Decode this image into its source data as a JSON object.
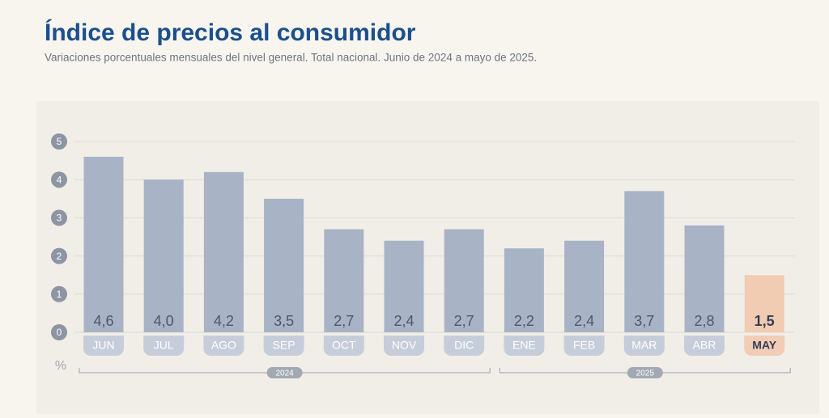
{
  "chart_data": {
    "type": "bar",
    "title": "Índice de precios al consumidor",
    "subtitle": "Variaciones porcentuales mensuales del nivel general. Total nacional. Junio de 2024 a mayo de 2025.",
    "categories": [
      "JUN",
      "JUL",
      "AGO",
      "SEP",
      "OCT",
      "NOV",
      "DIC",
      "ENE",
      "FEB",
      "MAR",
      "ABR",
      "MAY"
    ],
    "values": [
      4.6,
      4.0,
      4.2,
      3.5,
      2.7,
      2.4,
      2.7,
      2.2,
      2.4,
      3.7,
      2.8,
      1.5
    ],
    "value_labels": [
      "4,6",
      "4,0",
      "4,2",
      "3,5",
      "2,7",
      "2,4",
      "2,7",
      "2,2",
      "2,4",
      "3,7",
      "2,8",
      "1,5"
    ],
    "colors": [
      "#a8b3c6",
      "#a8b3c6",
      "#a8b3c6",
      "#a8b3c6",
      "#a8b3c6",
      "#a8b3c6",
      "#a8b3c6",
      "#a8b3c6",
      "#a8b3c6",
      "#a8b3c6",
      "#a8b3c6",
      "#f2cbb3"
    ],
    "y_unit": "%",
    "ylim": [
      0,
      5
    ],
    "yticks": [
      0,
      1,
      2,
      3,
      4,
      5
    ],
    "grid": true,
    "groups": [
      {
        "label": "2024",
        "from": "JUN",
        "to": "DIC"
      },
      {
        "label": "2025",
        "from": "ENE",
        "to": "MAY"
      }
    ]
  }
}
